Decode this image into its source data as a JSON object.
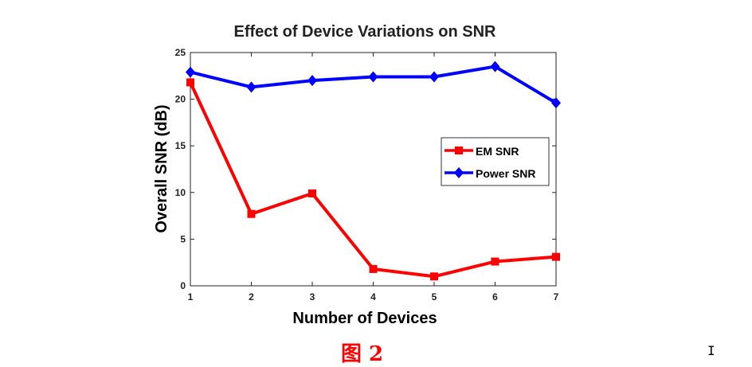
{
  "chart_data": {
    "type": "line",
    "title": "Effect of Device Variations on SNR",
    "xlabel": "Number of Devices",
    "ylabel": "Overall SNR (dB)",
    "x": [
      1,
      2,
      3,
      4,
      5,
      6,
      7
    ],
    "xlim": [
      1,
      7
    ],
    "ylim": [
      0,
      25
    ],
    "xticks": [
      1,
      2,
      3,
      4,
      5,
      6,
      7
    ],
    "yticks": [
      0,
      5,
      10,
      15,
      20,
      25
    ],
    "grid": false,
    "legend_position": "center-right",
    "series": [
      {
        "name": "EM SNR",
        "color": "#ff0000",
        "marker": "square",
        "values": [
          21.8,
          7.7,
          9.9,
          1.8,
          1.0,
          2.6,
          3.1
        ]
      },
      {
        "name": "Power SNR",
        "color": "#0000ff",
        "marker": "diamond",
        "values": [
          22.9,
          21.3,
          22.0,
          22.4,
          22.4,
          23.5,
          19.6
        ]
      }
    ]
  },
  "caption": "图 2",
  "cursor_glyph": "I"
}
